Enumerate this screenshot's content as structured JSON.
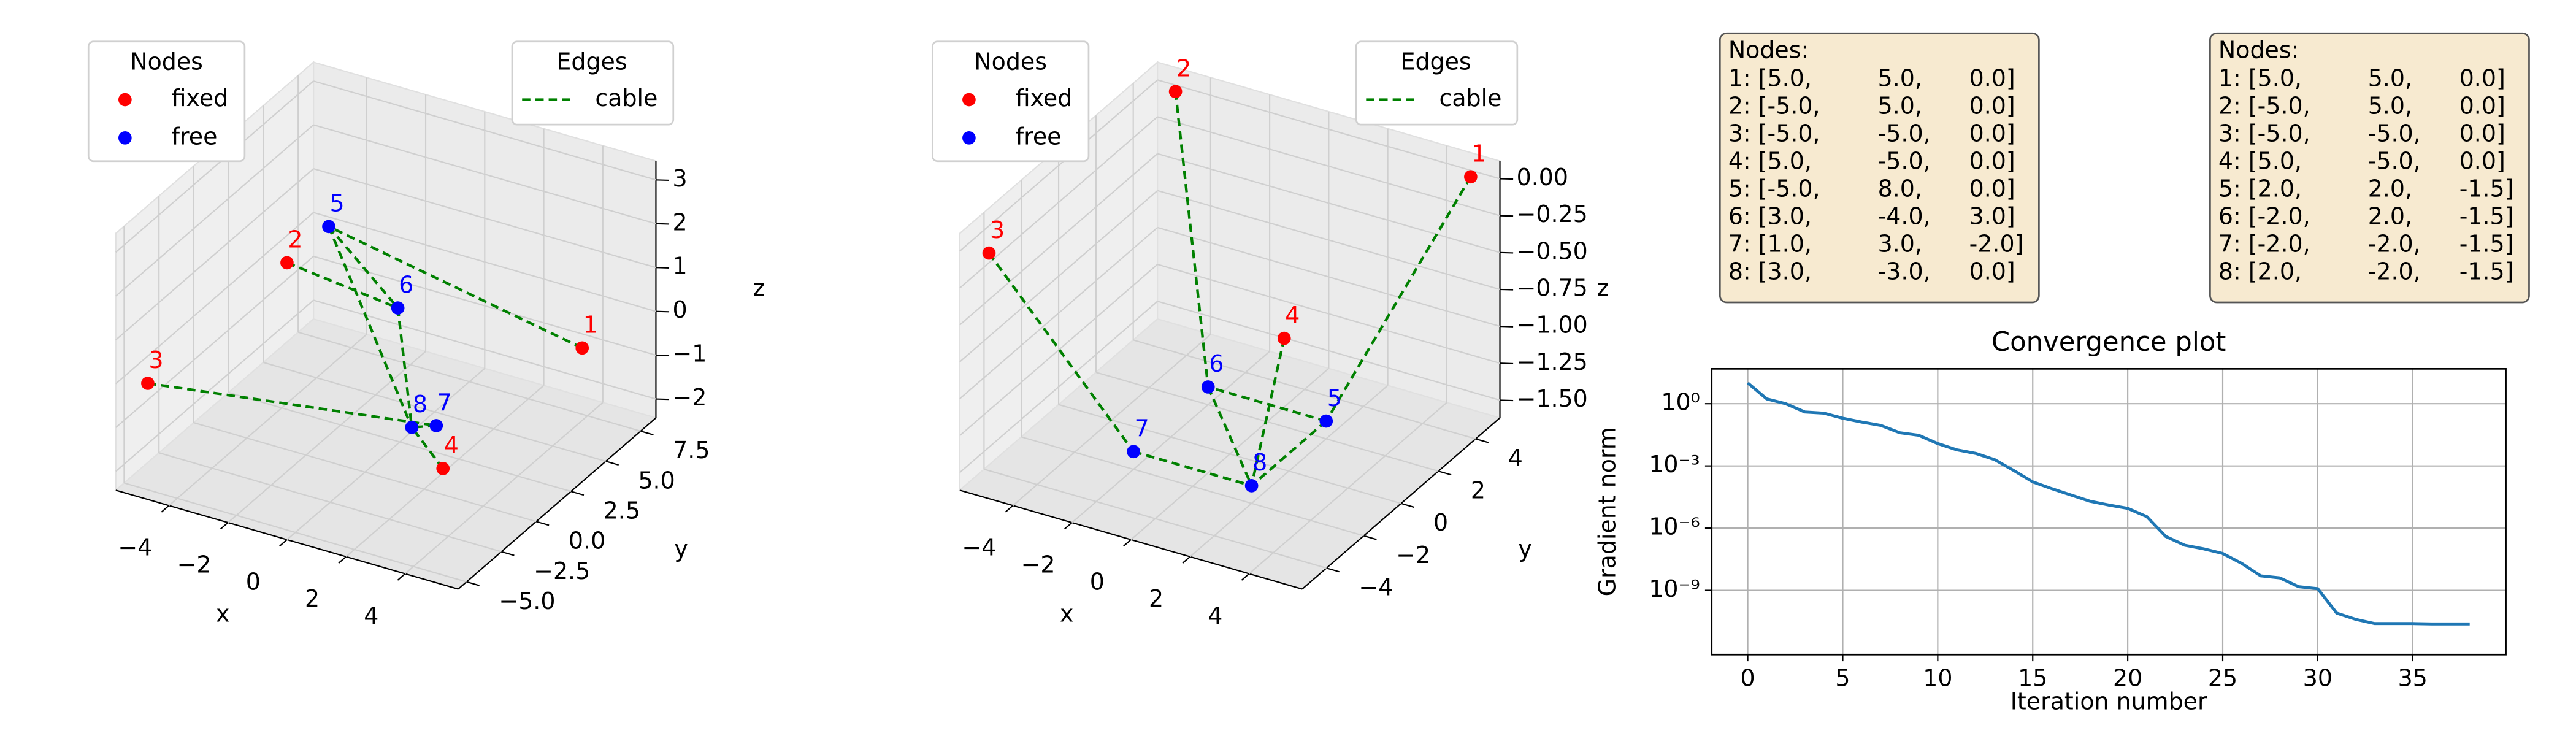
{
  "chart_data": [
    {
      "type": "scatter3d",
      "legend_title": "Nodes",
      "series": [
        {
          "name": "fixed",
          "color": "#ff0000",
          "labels": [
            "1",
            "2",
            "3",
            "4"
          ],
          "x": [
            5,
            -5,
            -5,
            5
          ],
          "y": [
            5,
            5,
            -5,
            -5
          ],
          "z": [
            0,
            0,
            0,
            0
          ]
        },
        {
          "name": "free",
          "color": "#0000ff",
          "labels": [
            "5",
            "6",
            "7",
            "8"
          ],
          "x": [
            -5,
            3,
            1,
            3
          ],
          "y": [
            8,
            -4,
            3,
            -3
          ],
          "z": [
            0,
            3,
            -2,
            0
          ]
        }
      ],
      "edges": {
        "title": "Edges",
        "name": "cable",
        "color": "#008000",
        "pairs": [
          [
            "1",
            "5"
          ],
          [
            "2",
            "6"
          ],
          [
            "3",
            "7"
          ],
          [
            "4",
            "8"
          ],
          [
            "5",
            "6"
          ],
          [
            "6",
            "8"
          ],
          [
            "7",
            "8"
          ],
          [
            "5",
            "8"
          ]
        ]
      },
      "xlabel": "x",
      "ylabel": "y",
      "zlabel": "z",
      "xlim": [
        -5.8,
        5.8
      ],
      "ylim": [
        -5.6,
        8.6
      ],
      "zlim": [
        -2.43,
        3.43
      ],
      "xticks": [
        {
          "value": -4,
          "label": "−4"
        },
        {
          "value": -2,
          "label": "−2"
        },
        0,
        2,
        4
      ],
      "yticks": [
        {
          "value": -5,
          "label": "−5.0"
        },
        {
          "value": -2.5,
          "label": "−2.5"
        },
        {
          "value": 0,
          "label": "0.0"
        },
        2.5,
        {
          "value": 5,
          "label": "5.0"
        },
        7.5
      ],
      "zticks": [
        {
          "value": -2,
          "label": "−2"
        },
        {
          "value": -1,
          "label": "−1"
        },
        0,
        1,
        2,
        3
      ],
      "text_box": {
        "title": "Nodes:",
        "rows": [
          [
            "1: [5.0,",
            "5.0,",
            "0.0]"
          ],
          [
            "2: [-5.0,",
            "5.0,",
            "0.0]"
          ],
          [
            "3: [-5.0,",
            "-5.0,",
            "0.0]"
          ],
          [
            "4: [5.0,",
            "-5.0,",
            "0.0]"
          ],
          [
            "5: [-5.0,",
            "8.0,",
            "0.0]"
          ],
          [
            "6: [3.0,",
            "-4.0,",
            "3.0]"
          ],
          [
            "7: [1.0,",
            "3.0,",
            "-2.0]"
          ],
          [
            "8: [3.0,",
            "-3.0,",
            "0.0]"
          ]
        ]
      }
    },
    {
      "type": "scatter3d",
      "legend_title": "Nodes",
      "series": [
        {
          "name": "fixed",
          "color": "#ff0000",
          "labels": [
            "1",
            "2",
            "3",
            "4"
          ],
          "x": [
            5,
            -5,
            -5,
            5
          ],
          "y": [
            5,
            5,
            -5,
            -5
          ],
          "z": [
            0,
            0,
            0,
            0
          ]
        },
        {
          "name": "free",
          "color": "#0000ff",
          "labels": [
            "5",
            "6",
            "7",
            "8"
          ],
          "x": [
            2,
            -2,
            -2,
            2
          ],
          "y": [
            2,
            2,
            -2,
            -2
          ],
          "z": [
            -1.5,
            -1.5,
            -1.5,
            -1.5
          ]
        }
      ],
      "edges": {
        "title": "Edges",
        "name": "cable",
        "color": "#008000",
        "pairs": [
          [
            "1",
            "5"
          ],
          [
            "2",
            "6"
          ],
          [
            "3",
            "7"
          ],
          [
            "4",
            "8"
          ],
          [
            "5",
            "6"
          ],
          [
            "6",
            "8"
          ],
          [
            "7",
            "8"
          ],
          [
            "5",
            "8"
          ]
        ]
      },
      "xlabel": "x",
      "ylabel": "y",
      "zlabel": "z",
      "xlim": [
        -5.8,
        5.8
      ],
      "ylim": [
        -5.3,
        5.3
      ],
      "zlim": [
        -1.62,
        0.12
      ],
      "xticks": [
        {
          "value": -4,
          "label": "−4"
        },
        {
          "value": -2,
          "label": "−2"
        },
        0,
        2,
        4
      ],
      "yticks": [
        {
          "value": -4,
          "label": "−4"
        },
        {
          "value": -2,
          "label": "−2"
        },
        0,
        2,
        4
      ],
      "zticks": [
        {
          "value": 0,
          "label": "0.00"
        },
        {
          "value": -0.25,
          "label": "−0.25"
        },
        {
          "value": -0.5,
          "label": "−0.50"
        },
        {
          "value": -0.75,
          "label": "−0.75"
        },
        {
          "value": -1,
          "label": "−1.00"
        },
        {
          "value": -1.25,
          "label": "−1.25"
        },
        {
          "value": -1.5,
          "label": "−1.50"
        }
      ],
      "text_box": {
        "title": "Nodes:",
        "rows": [
          [
            "1: [5.0,",
            "5.0,",
            "0.0]"
          ],
          [
            "2: [-5.0,",
            "5.0,",
            "0.0]"
          ],
          [
            "3: [-5.0,",
            "-5.0,",
            "0.0]"
          ],
          [
            "4: [5.0,",
            "-5.0,",
            "0.0]"
          ],
          [
            "5: [2.0,",
            "2.0,",
            "-1.5]"
          ],
          [
            "6: [-2.0,",
            "2.0,",
            "-1.5]"
          ],
          [
            "7: [-2.0,",
            "-2.0,",
            "-1.5]"
          ],
          [
            "8: [2.0,",
            "-2.0,",
            "-1.5]"
          ]
        ]
      }
    },
    {
      "type": "line",
      "title": "Convergence plot",
      "xlabel": "Iteration number",
      "ylabel": "Gradient norm",
      "x": [
        0,
        1,
        2,
        3,
        4,
        5,
        6,
        7,
        8,
        9,
        10,
        11,
        12,
        13,
        14,
        15,
        16,
        17,
        18,
        19,
        20,
        21,
        22,
        23,
        24,
        25,
        26,
        27,
        28,
        29,
        30,
        31,
        32,
        33,
        34,
        35,
        36,
        37,
        38
      ],
      "values": [
        10,
        1.7,
        1,
        0.4,
        0.35,
        0.2,
        0.13,
        0.09,
        0.04,
        0.03,
        0.012,
        0.006,
        0.004,
        0.002,
        0.0006,
        0.00017,
        8e-05,
        4e-05,
        2e-05,
        1.3e-05,
        9e-06,
        3.6e-06,
        4e-07,
        1.5e-07,
        1e-07,
        6e-08,
        2e-08,
        5e-09,
        4e-09,
        1.5e-09,
        1.2e-09,
        8e-11,
        4e-11,
        2.5e-11,
        2.5e-11,
        2.5e-11,
        2.4e-11,
        2.4e-11,
        2.4e-11
      ],
      "color": "#1f77b4",
      "log_y": true,
      "grid": true,
      "xlim": [
        -1.9,
        39.9
      ],
      "ylim": [
        8e-13,
        48
      ],
      "xticks": [
        0,
        5,
        10,
        15,
        20,
        25,
        30,
        35
      ],
      "yticks": [
        {
          "value": 1,
          "label": "10⁰"
        },
        {
          "value": 0.001,
          "label": "10⁻³"
        },
        {
          "value": 1e-06,
          "label": "10⁻⁶"
        },
        {
          "value": 1e-09,
          "label": "10⁻⁹"
        }
      ]
    }
  ]
}
